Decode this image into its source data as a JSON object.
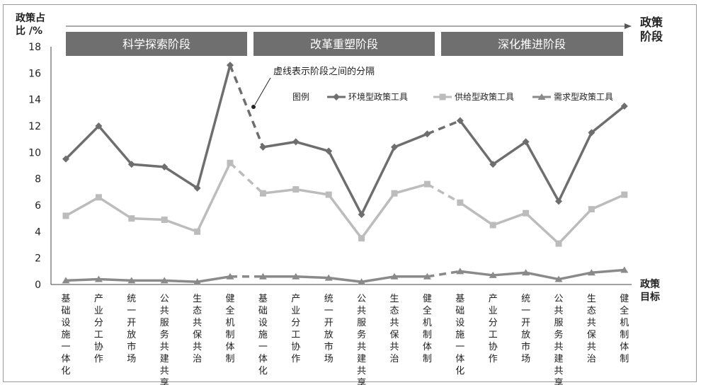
{
  "chart_data": {
    "type": "line",
    "ylabel_lines": [
      "政策占",
      "比 /%"
    ],
    "right_top_label_lines": [
      "政策",
      "阶段"
    ],
    "right_bottom_label_lines": [
      "政策",
      "目标"
    ],
    "ylim": [
      0,
      18
    ],
    "yticks": [
      0,
      2,
      4,
      6,
      8,
      10,
      12,
      14,
      16,
      18
    ],
    "phases": [
      "科学探索阶段",
      "改革重塑阶段",
      "深化推进阶段"
    ],
    "categories": [
      "基础设施一体化",
      "产业分工协作",
      "统一开放市场",
      "公共服务共建共享",
      "生态共保共治",
      "健全机制体制",
      "基础设施一体化",
      "产业分工协作",
      "统一开放市场",
      "公共服务共建共享",
      "生态共保共治",
      "健全机制体制",
      "基础设施一体化",
      "产业分工协作",
      "统一开放市场",
      "公共服务共建共享",
      "生态共保共治",
      "健全机制体制"
    ],
    "legend_title": "图例",
    "annotation": "虚线表示阶段之间的分隔",
    "series": [
      {
        "name": "环境型政策工具",
        "color": "#6e6e6e",
        "marker": "diamond",
        "values": [
          9.5,
          12.0,
          9.1,
          8.9,
          7.3,
          16.6,
          10.4,
          10.8,
          10.1,
          5.3,
          10.4,
          11.4,
          12.4,
          9.1,
          10.8,
          6.3,
          11.5,
          13.5
        ]
      },
      {
        "name": "供给型政策工具",
        "color": "#bcbcbc",
        "marker": "square",
        "values": [
          5.2,
          6.6,
          5.0,
          4.9,
          4.0,
          9.2,
          6.9,
          7.2,
          6.8,
          3.5,
          6.9,
          7.6,
          6.2,
          4.5,
          5.4,
          3.1,
          5.7,
          6.8
        ]
      },
      {
        "name": "需求型政策工具",
        "color": "#8a8a8a",
        "marker": "triangle",
        "values": [
          0.3,
          0.4,
          0.3,
          0.3,
          0.2,
          0.6,
          0.6,
          0.6,
          0.5,
          0.2,
          0.6,
          0.6,
          1.0,
          0.7,
          0.9,
          0.4,
          0.9,
          1.1
        ]
      }
    ]
  }
}
